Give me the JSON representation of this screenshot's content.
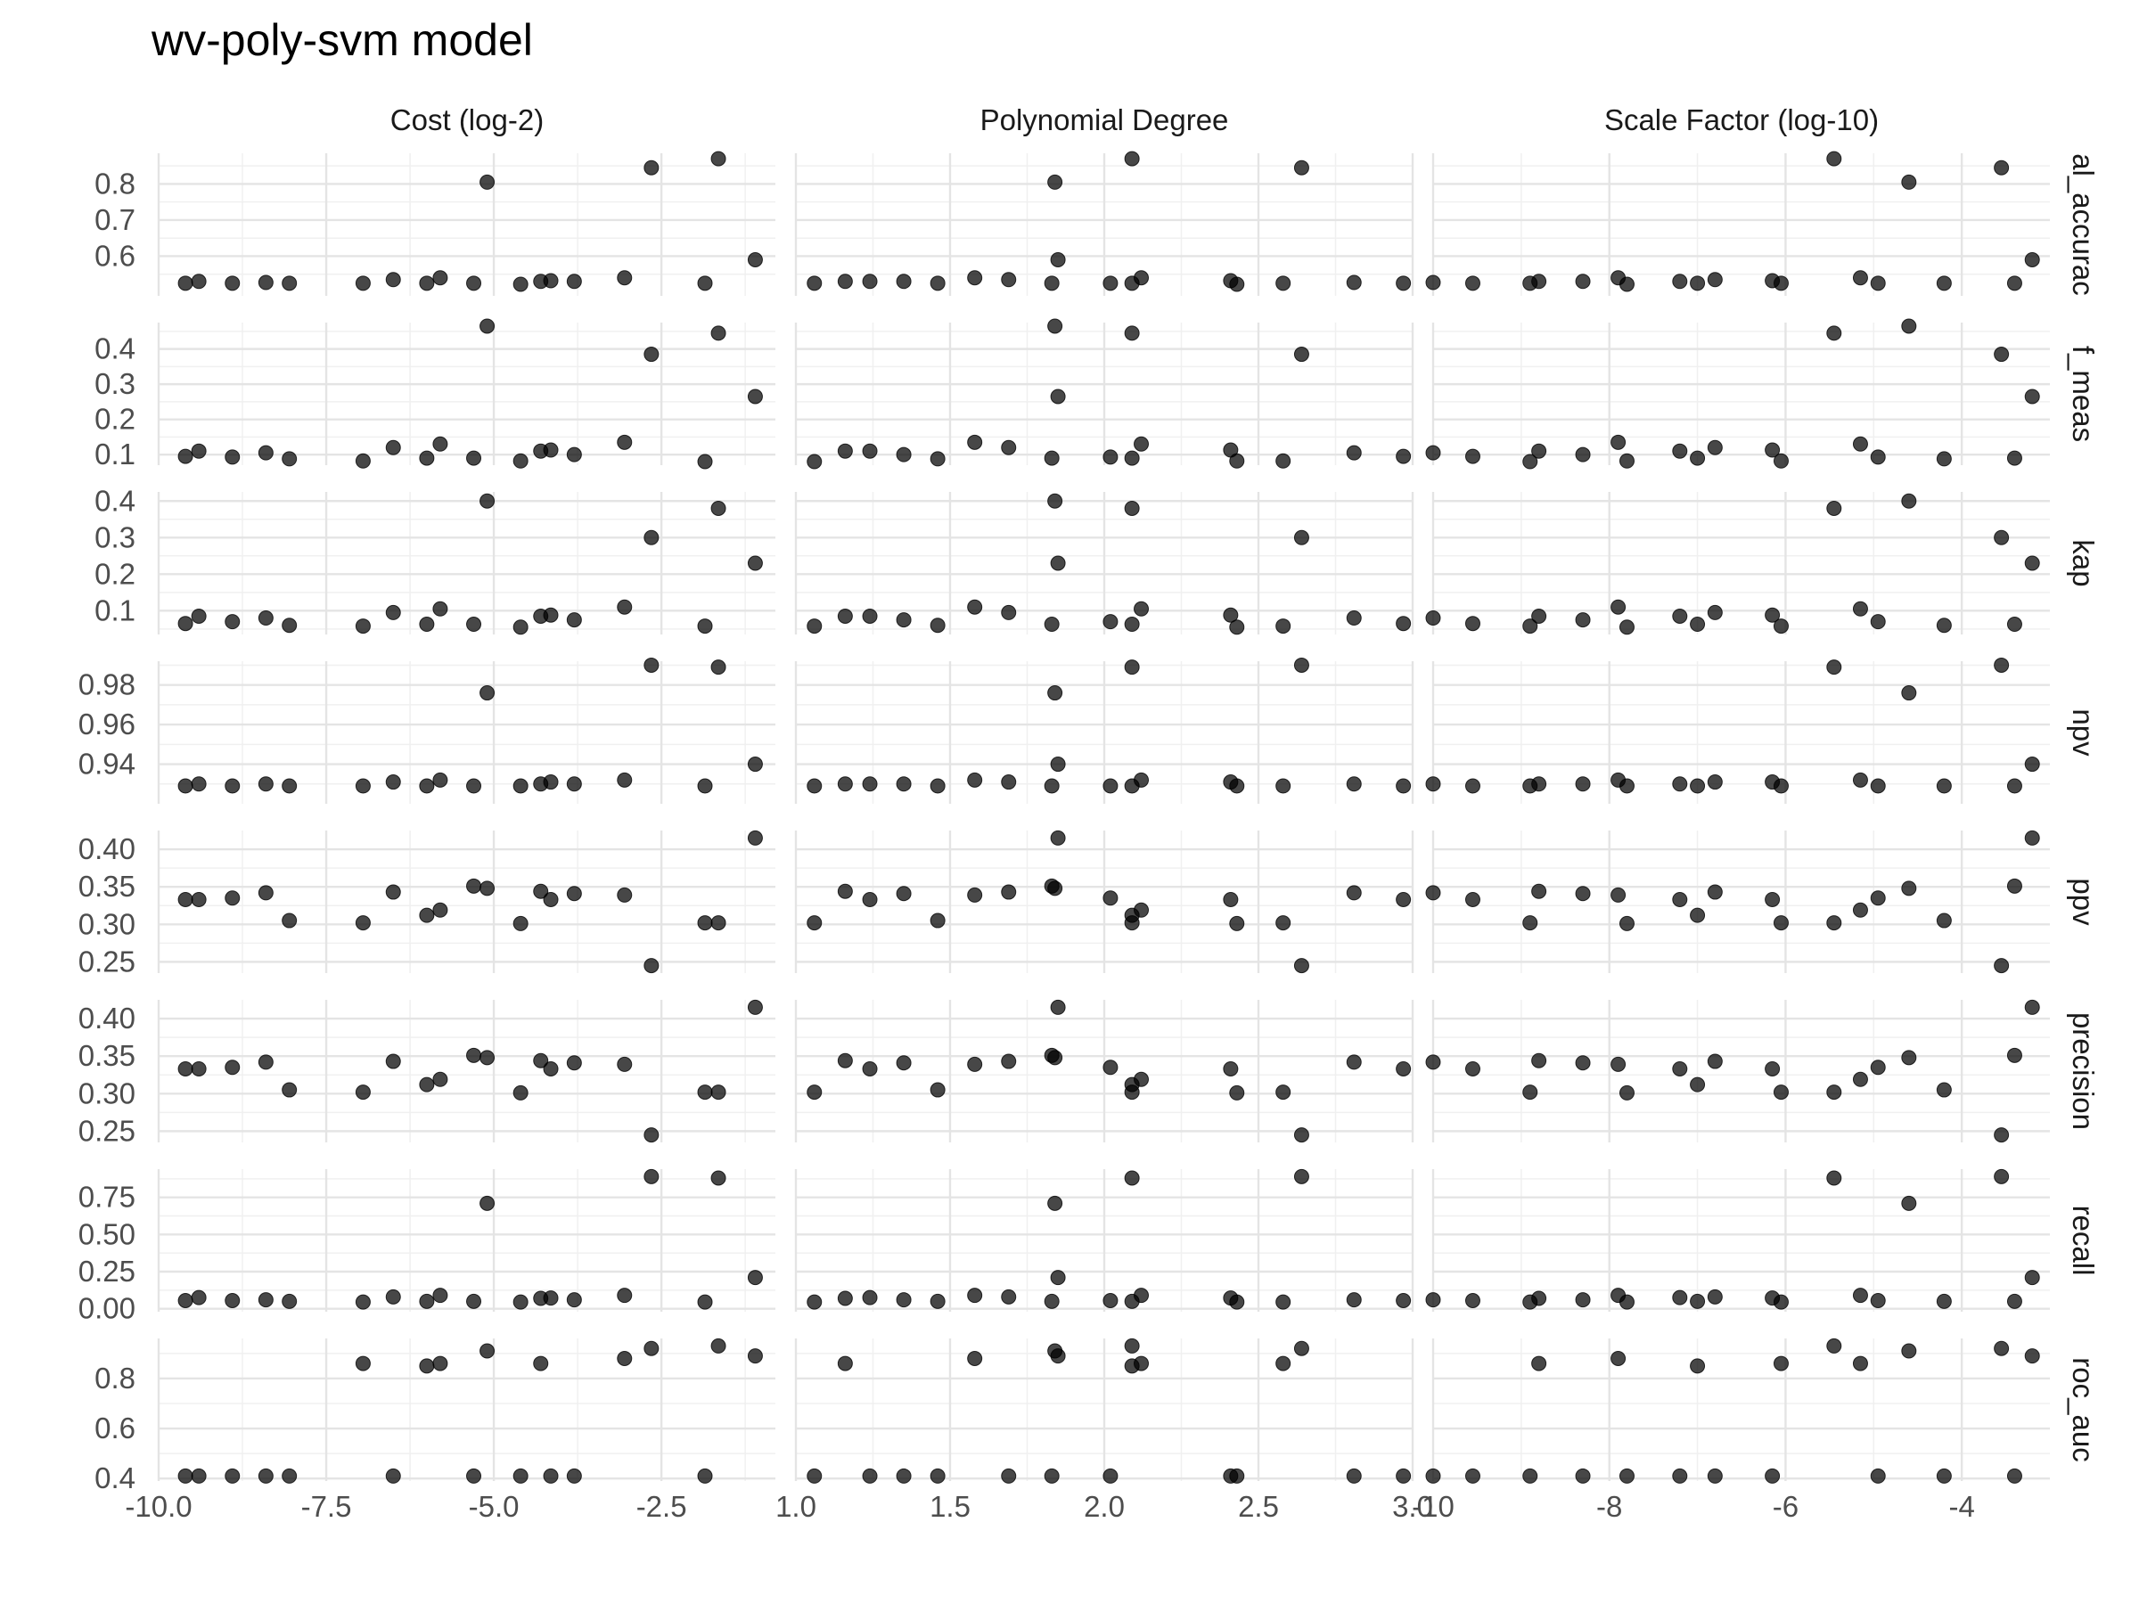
{
  "chart_data": {
    "type": "scatter",
    "title": "wv-poly-svm model",
    "facet_columns": [
      {
        "label": "Cost (log-2)",
        "xlim": [
          -10,
          -0.8
        ],
        "xticks": [
          -10,
          -7.5,
          -5,
          -2.5
        ],
        "xtick_labels": [
          "-10.0",
          "-7.5",
          "-5.0",
          "-2.5"
        ]
      },
      {
        "label": "Polynomial Degree",
        "xlim": [
          1.0,
          3.0
        ],
        "xticks": [
          1.0,
          1.5,
          2.0,
          2.5,
          3.0
        ],
        "xtick_labels": [
          "1.0",
          "1.5",
          "2.0",
          "2.5",
          "3.0"
        ]
      },
      {
        "label": "Scale Factor (log-10)",
        "xlim": [
          -10,
          -3.0
        ],
        "xticks": [
          -10,
          -8,
          -6,
          -4
        ],
        "xtick_labels": [
          "-10",
          "-8",
          "-6",
          "-4"
        ]
      }
    ],
    "facet_rows": [
      {
        "label": "al_accurac",
        "ylim": [
          0.49,
          0.885
        ],
        "yticks": [
          0.6,
          0.7,
          0.8
        ],
        "ytick_labels": [
          "0.6",
          "0.7",
          "0.8"
        ]
      },
      {
        "label": "f_meas",
        "ylim": [
          0.07,
          0.475
        ],
        "yticks": [
          0.1,
          0.2,
          0.3,
          0.4
        ],
        "ytick_labels": [
          "0.1",
          "0.2",
          "0.3",
          "0.4"
        ]
      },
      {
        "label": "kap",
        "ylim": [
          0.035,
          0.425
        ],
        "yticks": [
          0.1,
          0.2,
          0.3,
          0.4
        ],
        "ytick_labels": [
          "0.1",
          "0.2",
          "0.3",
          "0.4"
        ]
      },
      {
        "label": "npv",
        "ylim": [
          0.92,
          0.992
        ],
        "yticks": [
          0.94,
          0.96,
          0.98
        ],
        "ytick_labels": [
          "0.94",
          "0.96",
          "0.98"
        ]
      },
      {
        "label": "ppv",
        "ylim": [
          0.235,
          0.425
        ],
        "yticks": [
          0.25,
          0.3,
          0.35,
          0.4
        ],
        "ytick_labels": [
          "0.25",
          "0.30",
          "0.35",
          "0.40"
        ]
      },
      {
        "label": "precision",
        "ylim": [
          0.235,
          0.425
        ],
        "yticks": [
          0.25,
          0.3,
          0.35,
          0.4
        ],
        "ytick_labels": [
          "0.25",
          "0.30",
          "0.35",
          "0.40"
        ]
      },
      {
        "label": "recall",
        "ylim": [
          -0.02,
          0.94
        ],
        "yticks": [
          0,
          0.25,
          0.5,
          0.75
        ],
        "ytick_labels": [
          "0.00",
          "0.25",
          "0.50",
          "0.75"
        ]
      },
      {
        "label": "roc_auc",
        "ylim": [
          0.39,
          0.96
        ],
        "yticks": [
          0.4,
          0.6,
          0.8
        ],
        "ytick_labels": [
          "0.4",
          "0.6",
          "0.8"
        ]
      }
    ],
    "points": {
      "x_cost": [
        -9.6,
        -9.4,
        -8.9,
        -8.4,
        -8.05,
        -6.95,
        -6.5,
        -6.0,
        -5.8,
        -5.3,
        -5.1,
        -4.6,
        -4.3,
        -4.15,
        -3.8,
        -3.05,
        -2.65,
        -1.85,
        -1.65,
        -1.1
      ],
      "x_degree": [
        2.97,
        1.24,
        2.02,
        2.81,
        1.46,
        2.58,
        1.69,
        2.09,
        2.12,
        1.83,
        1.84,
        2.43,
        1.16,
        2.41,
        1.35,
        1.58,
        2.64,
        1.06,
        2.09,
        1.85
      ],
      "x_scale": [
        -9.55,
        -7.2,
        -4.95,
        -10.0,
        -4.2,
        -6.05,
        -6.8,
        -7.0,
        -5.15,
        -3.4,
        -4.6,
        -7.8,
        -8.8,
        -6.15,
        -8.3,
        -7.9,
        -3.55,
        -8.9,
        -5.45,
        -3.2
      ],
      "al_accurac": [
        0.525,
        0.53,
        0.525,
        0.527,
        0.525,
        0.525,
        0.535,
        0.525,
        0.54,
        0.525,
        0.805,
        0.522,
        0.53,
        0.532,
        0.53,
        0.54,
        0.845,
        0.525,
        0.87,
        0.59
      ],
      "f_meas": [
        0.095,
        0.11,
        0.093,
        0.105,
        0.088,
        0.082,
        0.12,
        0.09,
        0.13,
        0.09,
        0.465,
        0.082,
        0.11,
        0.113,
        0.1,
        0.135,
        0.385,
        0.08,
        0.445,
        0.265
      ],
      "kap": [
        0.065,
        0.085,
        0.07,
        0.08,
        0.06,
        0.058,
        0.095,
        0.063,
        0.105,
        0.063,
        0.4,
        0.055,
        0.085,
        0.088,
        0.075,
        0.11,
        0.3,
        0.058,
        0.38,
        0.23
      ],
      "npv": [
        0.929,
        0.93,
        0.929,
        0.93,
        0.929,
        0.929,
        0.931,
        0.929,
        0.932,
        0.929,
        0.976,
        0.929,
        0.93,
        0.931,
        0.93,
        0.932,
        0.99,
        0.929,
        0.989,
        0.94
      ],
      "ppv": [
        0.333,
        0.333,
        0.335,
        0.342,
        0.305,
        0.302,
        0.343,
        0.312,
        0.319,
        0.351,
        0.348,
        0.301,
        0.344,
        0.333,
        0.341,
        0.339,
        0.245,
        0.302,
        0.302,
        0.415
      ],
      "precision": [
        0.333,
        0.333,
        0.335,
        0.342,
        0.305,
        0.302,
        0.343,
        0.312,
        0.319,
        0.351,
        0.348,
        0.301,
        0.344,
        0.333,
        0.341,
        0.339,
        0.245,
        0.302,
        0.302,
        0.415
      ],
      "recall": [
        0.055,
        0.075,
        0.055,
        0.06,
        0.05,
        0.045,
        0.08,
        0.05,
        0.09,
        0.05,
        0.71,
        0.045,
        0.07,
        0.072,
        0.06,
        0.09,
        0.89,
        0.045,
        0.88,
        0.21
      ],
      "roc_auc": [
        0.41,
        0.41,
        0.41,
        0.41,
        0.41,
        0.86,
        0.41,
        0.85,
        0.86,
        0.41,
        0.91,
        0.41,
        0.86,
        0.41,
        0.41,
        0.88,
        0.92,
        0.41,
        0.93,
        0.89
      ]
    }
  }
}
